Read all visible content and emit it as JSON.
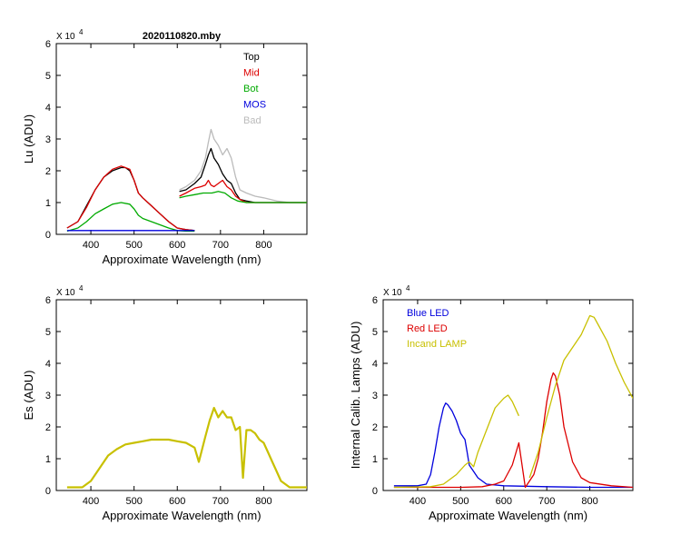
{
  "chart_data": [
    {
      "type": "line",
      "title": "2020110820.mby",
      "exponent_label": "X 10",
      "exponent_power": "4",
      "xlabel": "Approximate Wavelength (nm)",
      "ylabel": "Lu (ADU)",
      "xlim": [
        320,
        900
      ],
      "ylim": [
        0,
        6
      ],
      "xticks": [
        400,
        500,
        600,
        700,
        800
      ],
      "yticks": [
        0,
        1,
        2,
        3,
        4,
        5,
        6
      ],
      "legend": [
        {
          "name": "Top",
          "color": "#000000"
        },
        {
          "name": "Mid",
          "color": "#dd0000"
        },
        {
          "name": "Bot",
          "color": "#00aa00"
        },
        {
          "name": "MOS",
          "color": "#0000dd"
        },
        {
          "name": "Bad",
          "color": "#bbbbbb"
        }
      ],
      "series": [
        {
          "name": "Bad",
          "color": "#bbbbbb",
          "x": [
            605,
            620,
            640,
            655,
            665,
            672,
            678,
            685,
            695,
            705,
            715,
            725,
            735,
            745,
            760,
            780,
            800,
            830,
            860,
            900
          ],
          "y": [
            1.4,
            1.5,
            1.7,
            2.0,
            2.4,
            2.9,
            3.3,
            3.0,
            2.8,
            2.5,
            2.7,
            2.4,
            1.8,
            1.4,
            1.3,
            1.2,
            1.15,
            1.05,
            1.0,
            1.0
          ]
        },
        {
          "name": "Top",
          "color": "#000000",
          "x": [
            345,
            370,
            390,
            410,
            430,
            450,
            470,
            480,
            490,
            500,
            510,
            520,
            540,
            560,
            580,
            600,
            620,
            640
          ],
          "y": [
            0.2,
            0.4,
            0.9,
            1.4,
            1.8,
            2.0,
            2.1,
            2.1,
            2.0,
            1.7,
            1.3,
            1.15,
            0.9,
            0.65,
            0.4,
            0.2,
            0.15,
            0.12
          ]
        },
        {
          "name": "Mid",
          "color": "#dd0000",
          "x": [
            345,
            370,
            390,
            410,
            430,
            450,
            470,
            480,
            490,
            500,
            510,
            520,
            540,
            560,
            580,
            600,
            620,
            640
          ],
          "y": [
            0.2,
            0.4,
            0.85,
            1.4,
            1.8,
            2.05,
            2.15,
            2.1,
            2.05,
            1.7,
            1.3,
            1.15,
            0.9,
            0.65,
            0.4,
            0.2,
            0.15,
            0.12
          ]
        },
        {
          "name": "Bot",
          "color": "#00aa00",
          "x": [
            345,
            370,
            390,
            410,
            430,
            450,
            470,
            490,
            500,
            510,
            520,
            540,
            560,
            580,
            600,
            620,
            640
          ],
          "y": [
            0.1,
            0.2,
            0.4,
            0.65,
            0.8,
            0.95,
            1.0,
            0.95,
            0.8,
            0.6,
            0.5,
            0.4,
            0.3,
            0.2,
            0.12,
            0.1,
            0.1
          ]
        },
        {
          "name": "Top",
          "color": "#000000",
          "x": [
            605,
            620,
            640,
            655,
            665,
            672,
            678,
            685,
            695,
            705,
            715,
            725,
            735,
            745,
            760,
            780,
            800,
            830,
            860,
            900
          ],
          "y": [
            1.35,
            1.4,
            1.6,
            1.8,
            2.2,
            2.5,
            2.7,
            2.4,
            2.2,
            1.9,
            1.7,
            1.6,
            1.3,
            1.1,
            1.05,
            1.0,
            1.0,
            1.0,
            1.0,
            1.0
          ]
        },
        {
          "name": "Mid",
          "color": "#dd0000",
          "x": [
            605,
            620,
            640,
            655,
            665,
            672,
            678,
            685,
            695,
            705,
            715,
            725,
            735,
            745,
            760,
            800,
            900
          ],
          "y": [
            1.2,
            1.3,
            1.45,
            1.5,
            1.55,
            1.7,
            1.55,
            1.5,
            1.6,
            1.7,
            1.5,
            1.4,
            1.2,
            1.1,
            1.0,
            1.0,
            1.0
          ]
        },
        {
          "name": "Bot",
          "color": "#00aa00",
          "x": [
            605,
            620,
            640,
            660,
            680,
            695,
            710,
            725,
            740,
            760,
            800,
            900
          ],
          "y": [
            1.15,
            1.2,
            1.25,
            1.3,
            1.3,
            1.35,
            1.3,
            1.15,
            1.05,
            1.0,
            1.0,
            1.0
          ]
        },
        {
          "name": "MOS",
          "color": "#0000dd",
          "x": [
            345,
            640
          ],
          "y": [
            0.12,
            0.12
          ]
        }
      ]
    },
    {
      "type": "line",
      "exponent_label": "X 10",
      "exponent_power": "4",
      "xlabel": "Approximate Wavelength (nm)",
      "ylabel": "Es  (ADU)",
      "xlim": [
        320,
        900
      ],
      "ylim": [
        0,
        6
      ],
      "xticks": [
        400,
        500,
        600,
        700,
        800
      ],
      "yticks": [
        0,
        1,
        2,
        3,
        4,
        5,
        6
      ],
      "color": "#c8c000",
      "series": [
        {
          "name": "Es",
          "x": [
            345,
            380,
            400,
            420,
            440,
            460,
            480,
            500,
            520,
            540,
            560,
            580,
            600,
            620,
            640,
            650,
            665,
            675,
            685,
            695,
            705,
            715,
            725,
            735,
            745,
            752,
            760,
            770,
            780,
            790,
            800,
            810,
            820,
            830,
            840,
            860,
            900
          ],
          "y": [
            0.1,
            0.1,
            0.3,
            0.7,
            1.1,
            1.3,
            1.45,
            1.5,
            1.55,
            1.6,
            1.6,
            1.6,
            1.55,
            1.5,
            1.35,
            0.9,
            1.7,
            2.2,
            2.6,
            2.3,
            2.5,
            2.3,
            2.3,
            1.9,
            2.0,
            0.4,
            1.9,
            1.9,
            1.8,
            1.6,
            1.5,
            1.2,
            0.9,
            0.6,
            0.3,
            0.1,
            0.1
          ]
        }
      ]
    },
    {
      "type": "line",
      "exponent_label": "X 10",
      "exponent_power": "4",
      "xlabel": "Approximate Wavelength (nm)",
      "ylabel": "Internal Calib. Lamps  (ADU)",
      "xlim": [
        320,
        900
      ],
      "ylim": [
        0,
        6
      ],
      "xticks": [
        400,
        500,
        600,
        700,
        800
      ],
      "yticks": [
        0,
        1,
        2,
        3,
        4,
        5,
        6
      ],
      "legend": [
        {
          "name": "Blue LED",
          "color": "#0000dd"
        },
        {
          "name": "Red LED",
          "color": "#dd0000"
        },
        {
          "name": "Incand LAMP",
          "color": "#c8c000"
        }
      ],
      "series": [
        {
          "name": "Blue LED",
          "color": "#0000dd",
          "x": [
            345,
            400,
            420,
            430,
            440,
            450,
            460,
            465,
            470,
            480,
            490,
            500,
            510,
            515,
            520,
            525,
            530,
            540,
            560,
            600,
            700,
            800,
            900
          ],
          "y": [
            0.15,
            0.15,
            0.2,
            0.5,
            1.2,
            2.0,
            2.6,
            2.75,
            2.7,
            2.5,
            2.2,
            1.8,
            1.6,
            1.2,
            0.8,
            0.7,
            0.6,
            0.4,
            0.2,
            0.15,
            0.12,
            0.1,
            0.1
          ]
        },
        {
          "name": "Red LED",
          "color": "#dd0000",
          "x": [
            345,
            500,
            550,
            580,
            600,
            620,
            635,
            650,
            670,
            680,
            690,
            700,
            710,
            715,
            720,
            730,
            740,
            760,
            780,
            800,
            850,
            900
          ],
          "y": [
            0.1,
            0.1,
            0.12,
            0.2,
            0.3,
            0.8,
            1.5,
            0.1,
            0.5,
            1.0,
            1.8,
            2.8,
            3.5,
            3.7,
            3.6,
            3.0,
            2.0,
            0.9,
            0.4,
            0.25,
            0.15,
            0.1
          ]
        },
        {
          "name": "Incand LAMP",
          "color": "#c8c000",
          "x": [
            345,
            430,
            460,
            490,
            510,
            520,
            530,
            540,
            560,
            580,
            600,
            610,
            620,
            635
          ],
          "y": [
            0.1,
            0.12,
            0.2,
            0.5,
            0.8,
            0.9,
            0.75,
            1.2,
            1.9,
            2.6,
            2.9,
            3.0,
            2.8,
            2.35
          ]
        },
        {
          "name": "Incand LAMP",
          "color": "#c8c000",
          "x": [
            660,
            680,
            700,
            720,
            740,
            760,
            780,
            800,
            810,
            820,
            840,
            860,
            880,
            900
          ],
          "y": [
            0.4,
            1.2,
            2.3,
            3.3,
            4.1,
            4.5,
            4.9,
            5.5,
            5.45,
            5.2,
            4.7,
            4.0,
            3.4,
            2.9
          ]
        }
      ]
    }
  ]
}
